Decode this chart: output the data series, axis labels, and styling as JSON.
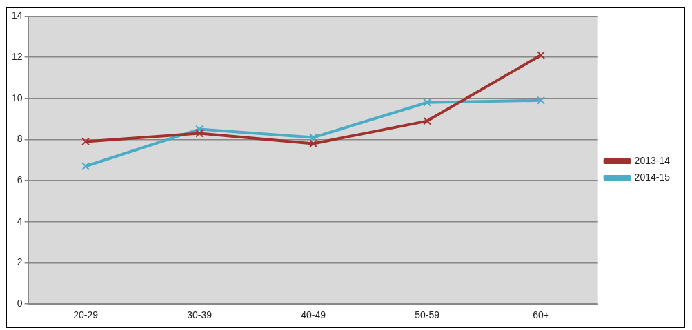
{
  "chart_data": {
    "type": "line",
    "categories": [
      "20-29",
      "30-39",
      "40-49",
      "50-59",
      "60+"
    ],
    "series": [
      {
        "name": "2013-14",
        "color": "#a0322d",
        "marker": "cross",
        "values": [
          7.9,
          8.3,
          7.8,
          8.9,
          12.1
        ]
      },
      {
        "name": "2014-15",
        "color": "#4bacc6",
        "marker": "cross",
        "values": [
          6.7,
          8.5,
          8.1,
          9.8,
          9.9
        ]
      }
    ],
    "ylim": [
      0,
      14
    ],
    "yticks": [
      0,
      2,
      4,
      6,
      8,
      10,
      12,
      14
    ],
    "grid": "y",
    "legend": "right"
  }
}
